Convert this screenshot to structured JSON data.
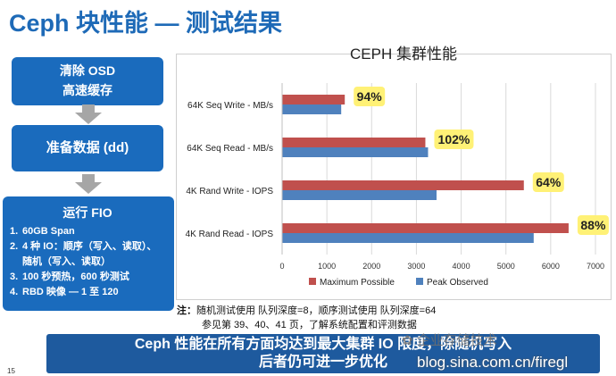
{
  "slide": {
    "title": "Ceph 块性能 — 测试结果",
    "page_number": "15"
  },
  "flow": {
    "step1": [
      "清除 OSD",
      "高速缓存"
    ],
    "step2": "准备数据 (dd)",
    "step3": {
      "title": "运行 FIO",
      "items": [
        {
          "num": "1.",
          "text": "60GB Span"
        },
        {
          "num": "2.",
          "text": "4 种 IO：顺序（写入、读取）、随机（写入、读取）"
        },
        {
          "num": "3.",
          "text": "100 秒预热，600 秒测试"
        },
        {
          "num": "4.",
          "text": "RBD 映像 — 1 至 120"
        }
      ]
    },
    "box_color": "#1a6bbd",
    "arrow_color": "#a6a6a6"
  },
  "chart_data": {
    "type": "bar",
    "orientation": "horizontal",
    "title": "CEPH 集群性能",
    "categories": [
      "64K Seq Write - MB/s",
      "64K Seq Read - MB/s",
      "4K Rand Write - IOPS",
      "4K Rand Read - IOPS"
    ],
    "series": [
      {
        "name": "Maximum Possible",
        "color": "#c0504d",
        "values": [
          1400,
          3200,
          5400,
          6400
        ]
      },
      {
        "name": "Peak Observed",
        "color": "#4f81bd",
        "values": [
          1320,
          3260,
          3450,
          5620
        ]
      }
    ],
    "annotations": [
      "94%",
      "102%",
      "64%",
      "88%"
    ],
    "annotation_color": "#fff176",
    "xlim": [
      0,
      7000
    ],
    "x_ticks": [
      "0",
      "1000",
      "2000",
      "3000",
      "4000",
      "5000",
      "6000",
      "7000"
    ],
    "grid": "vertical",
    "legend_position": "bottom"
  },
  "notes": {
    "line1_label": "注：",
    "line1_text": "随机测试使用 队列深度=8，顺序测试使用 队列深度=64",
    "line2": "参见第 39、40、41 页，了解系统配置和评测数据"
  },
  "conclusion": {
    "line1": "Ceph 性能在所有方面均达到最大集群 IO 限度，除随机写入",
    "line2": "后者仍可进一步优化",
    "bg_color": "#1e5a9e"
  },
  "watermark": {
    "account": "企业存储技术",
    "url": "blog.sina.com.cn/firegl"
  }
}
